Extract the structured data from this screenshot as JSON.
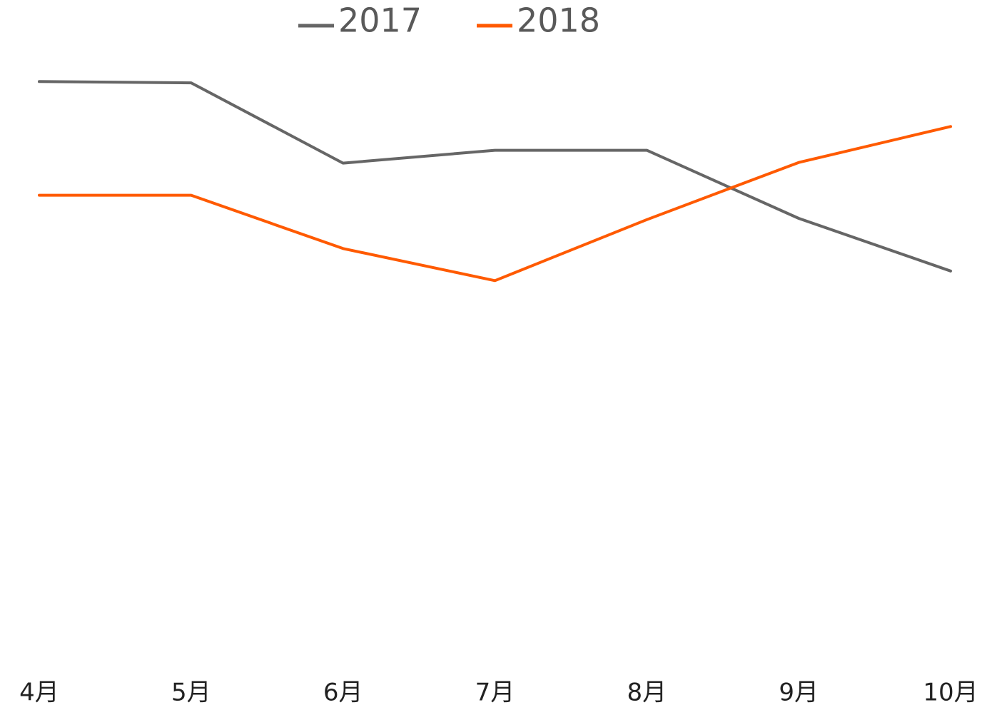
{
  "chart_data": {
    "type": "line",
    "categories": [
      "4月",
      "5月",
      "6月",
      "7月",
      "8月",
      "9月",
      "10月"
    ],
    "series": [
      {
        "name": "2017",
        "color": "#666666",
        "values": [
          92.3,
          92.1,
          79.6,
          81.6,
          81.6,
          71,
          62.8
        ]
      },
      {
        "name": "2018",
        "color": "#ff5a00",
        "values": [
          74.6,
          74.6,
          66.3,
          61.3,
          70.8,
          79.7,
          85.3
        ]
      }
    ],
    "ylim": [
      0,
      100
    ],
    "legend": "top"
  }
}
